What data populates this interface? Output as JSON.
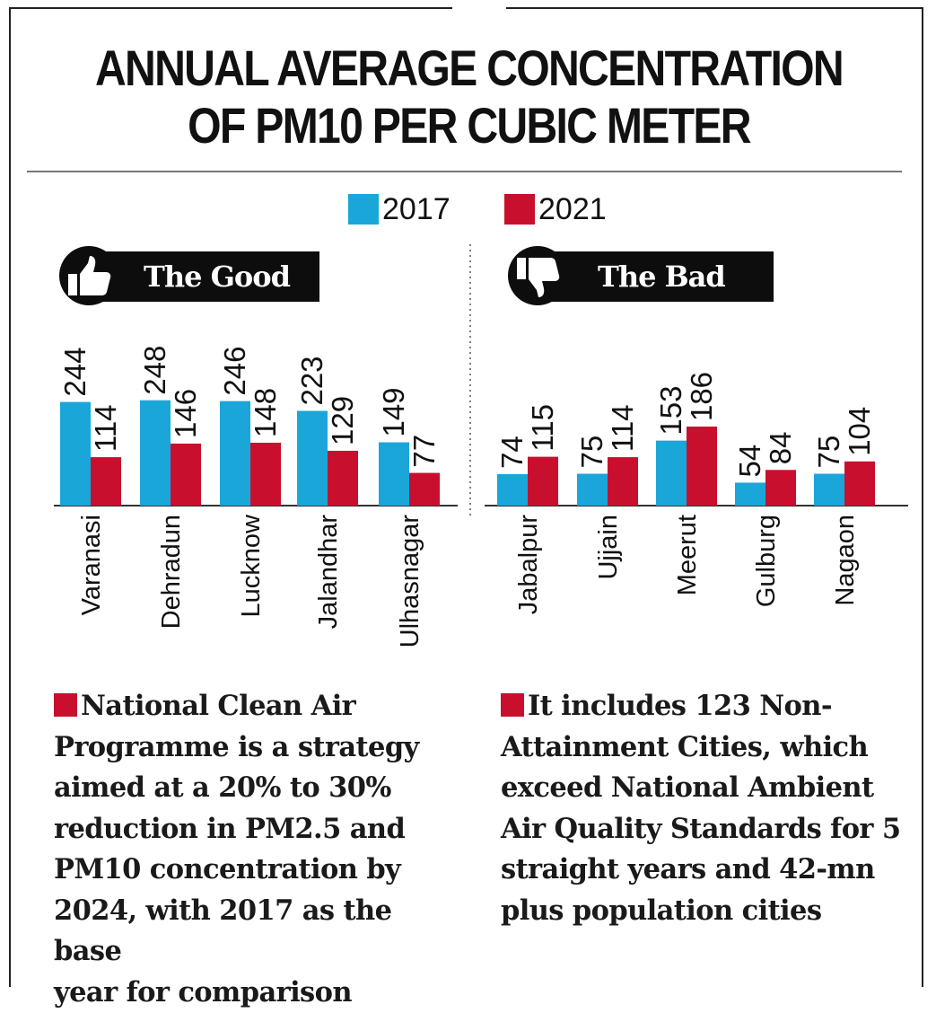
{
  "title_line1": "ANNUAL AVERAGE CONCENTRATION",
  "title_line2": "OF PM10 PER CUBIC METER",
  "colors": {
    "y2017": "#1aa6d9",
    "y2021": "#c8102e",
    "badge": "#0d0d0d"
  },
  "badges": {
    "good": {
      "label": "The Good",
      "icon": "thumbs-up-icon"
    },
    "bad": {
      "label": "The Bad",
      "icon": "thumbs-down-icon"
    }
  },
  "chart_data": [
    {
      "type": "bar",
      "title": "",
      "categories": [
        "Varanasi",
        "Dehradun",
        "Lucknow",
        "Jalandhar",
        "Ulhasnagar"
      ],
      "series": [
        {
          "name": "2017",
          "values": [
            244,
            248,
            246,
            223,
            149
          ]
        },
        {
          "name": "2021",
          "values": [
            114,
            146,
            148,
            129,
            77
          ]
        }
      ],
      "ylim": [
        0,
        250
      ],
      "grid": false,
      "legend": "top-center"
    },
    {
      "type": "bar",
      "title": "",
      "categories": [
        "Jabalpur",
        "Ujjain",
        "Meerut",
        "Gulburg",
        "Nagaon"
      ],
      "series": [
        {
          "name": "2017",
          "values": [
            74,
            75,
            153,
            54,
            75
          ]
        },
        {
          "name": "2021",
          "values": [
            115,
            114,
            186,
            84,
            104
          ]
        }
      ],
      "ylim": [
        0,
        250
      ],
      "grid": false,
      "legend": "top-center"
    }
  ],
  "notes": {
    "left": [
      "National Clean Air",
      "Programme is a strategy",
      "aimed at a 20% to 30%",
      "reduction in PM2.5 and",
      "PM10 concentration by",
      "2024, with 2017 as the base",
      "year for comparison"
    ],
    "right": [
      "It includes 123 Non-",
      "Attainment Cities, which",
      "exceed National Ambient",
      "Air Quality Standards for 5",
      "straight years and 42-mn",
      "plus population cities"
    ]
  }
}
